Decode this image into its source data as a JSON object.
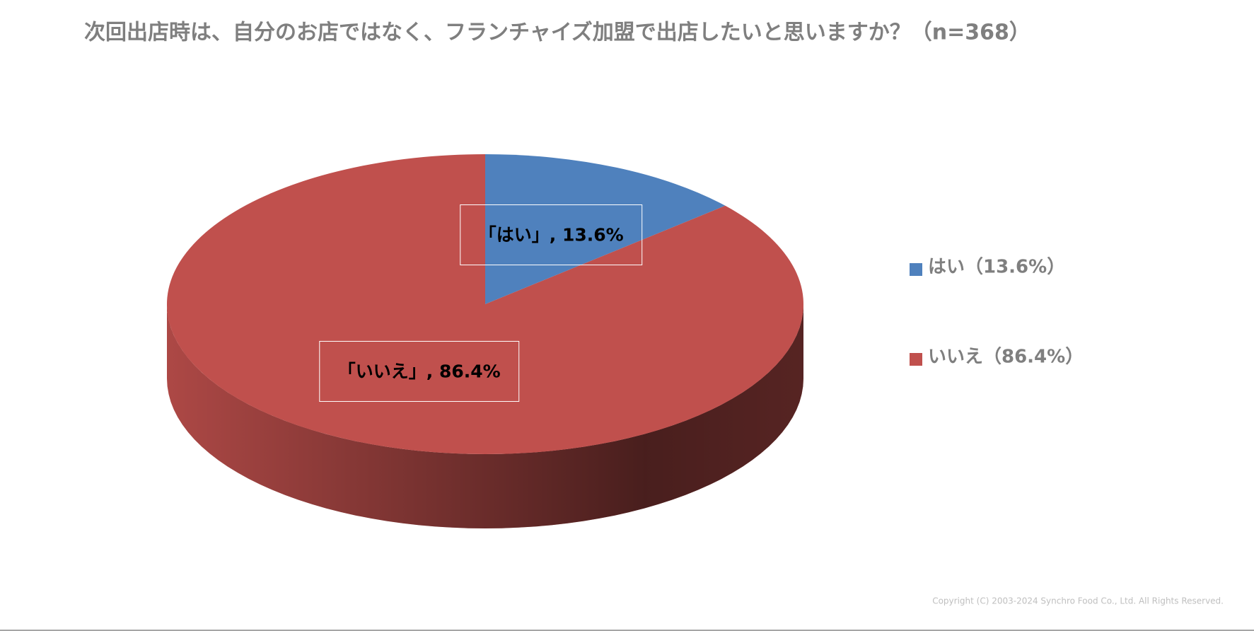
{
  "chart_data": {
    "type": "pie3d",
    "title": "次回出店時は、自分のお店ではなく、フランチャイズ加盟で出店したいと思いますか？（n=368）",
    "categories": [
      "はい（13.6%）",
      "いいえ（86.4%）"
    ],
    "values": [
      13.6,
      86.4
    ],
    "value_labels": [
      "「はい」, 13.6%",
      "「いいえ」, 86.4%"
    ],
    "colors": [
      "#4f81bd",
      "#c0504d"
    ],
    "legend": "right"
  },
  "copyright": "Copyright (C) 2003-2024   Synchro Food Co., Ltd. All Rights Reserved."
}
